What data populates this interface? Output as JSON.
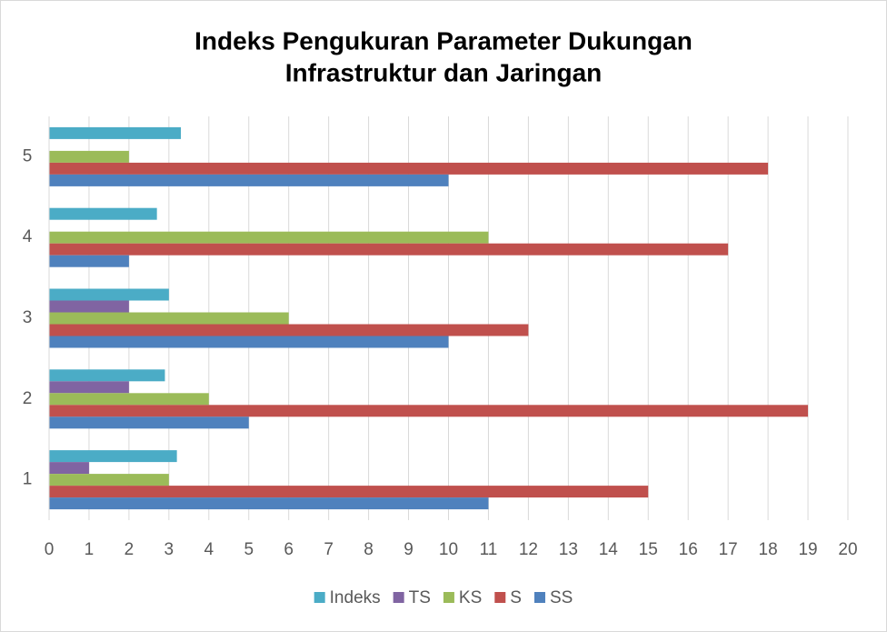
{
  "chart_data": {
    "type": "bar",
    "orientation": "horizontal",
    "title": [
      "Indeks Pengukuran Parameter Dukungan",
      "Infrastruktur dan Jaringan"
    ],
    "categories": [
      "1",
      "2",
      "3",
      "4",
      "5"
    ],
    "series": [
      {
        "name": "Indeks",
        "color": "#4bacc6",
        "values": [
          3.2,
          2.9,
          3,
          2.7,
          3.3
        ]
      },
      {
        "name": "TS",
        "color": "#8064a2",
        "values": [
          1,
          2,
          2,
          0,
          0
        ]
      },
      {
        "name": "KS",
        "color": "#9bbb59",
        "values": [
          3,
          4,
          6,
          11,
          2
        ]
      },
      {
        "name": "S",
        "color": "#c0504d",
        "values": [
          15,
          19,
          12,
          17,
          18
        ]
      },
      {
        "name": "SS",
        "color": "#4f81bd",
        "values": [
          11,
          5,
          10,
          2,
          10
        ]
      }
    ],
    "xlim": [
      0,
      20
    ],
    "xticks": [
      0,
      1,
      2,
      3,
      4,
      5,
      6,
      7,
      8,
      9,
      10,
      11,
      12,
      13,
      14,
      15,
      16,
      17,
      18,
      19,
      20
    ],
    "grid": true,
    "legend": "bottom"
  }
}
